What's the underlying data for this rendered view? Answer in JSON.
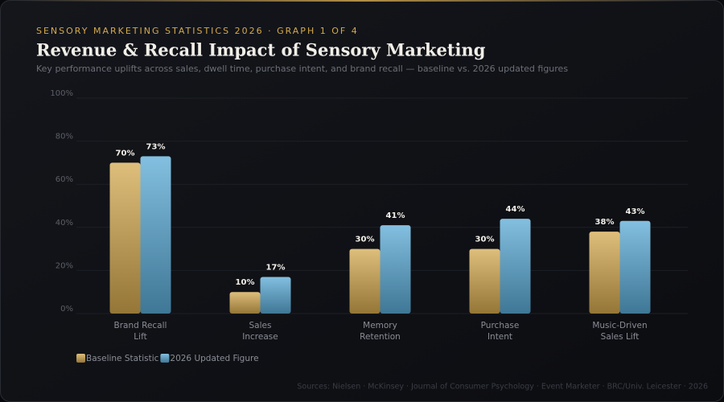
{
  "chart_data": {
    "type": "bar",
    "eyebrow": "SENSORY MARKETING STATISTICS 2026 · GRAPH 1 OF 4",
    "title": "Revenue & Recall Impact of Sensory Marketing",
    "subtitle": "Key performance uplifts across sales, dwell time, purchase intent, and brand recall — baseline vs. 2026 updated figures",
    "source": "Sources: Nielsen · McKinsey · Journal of Consumer Psychology · Event Marketer · BRC/Univ. Leicester · 2026",
    "categories": [
      "Brand Recall Lift",
      "Sales Increase",
      "Memory Retention",
      "Purchase Intent",
      "Music-Driven Sales Lift"
    ],
    "series": [
      {
        "name": "Baseline Statistic",
        "color": "#d4a94f",
        "values": [
          70,
          10,
          30,
          30,
          38
        ],
        "value_labels": [
          "70%",
          "10%",
          "30%",
          "30%",
          "38%"
        ]
      },
      {
        "name": "2026 Updated Figure",
        "color": "#5aaad6",
        "values": [
          73,
          17,
          41,
          44,
          43
        ],
        "value_labels": [
          "73%",
          "17%",
          "41%",
          "44%",
          "43%"
        ]
      }
    ],
    "ylim": [
      0,
      100
    ],
    "yticks": [
      {
        "value": 0,
        "label": "0%"
      },
      {
        "value": 20,
        "label": "20%"
      },
      {
        "value": 40,
        "label": "40%"
      },
      {
        "value": 60,
        "label": "60%"
      },
      {
        "value": 80,
        "label": "80%"
      },
      {
        "value": 100,
        "label": "100%"
      }
    ],
    "grid": true,
    "legend": "bottom-left"
  }
}
